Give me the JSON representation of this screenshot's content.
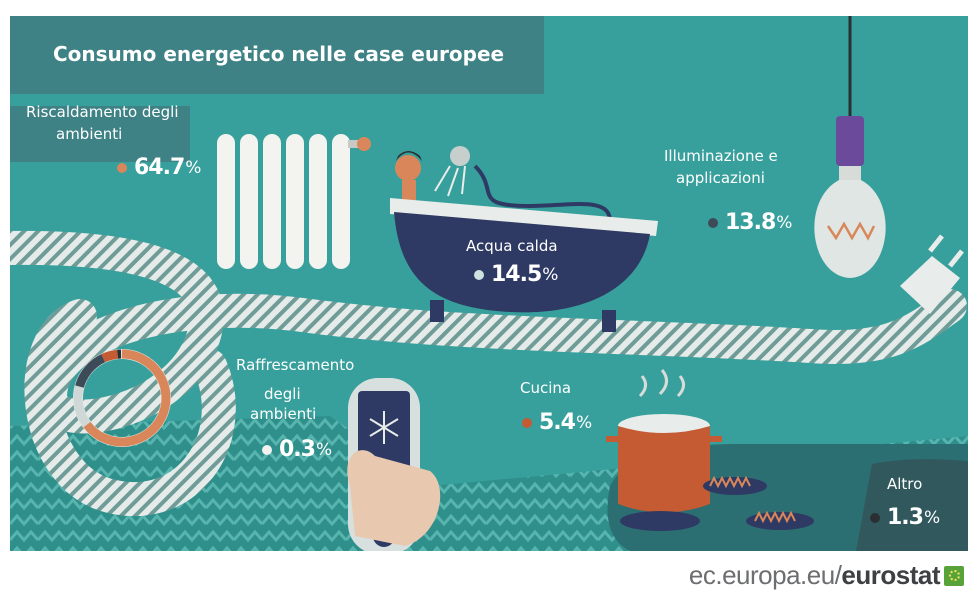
{
  "colors": {
    "background": "#38a09c",
    "dark_panel": "#3f8286",
    "accent_orange": "#d9875a",
    "accent_red": "#c45b32",
    "tub": "#2e3a63",
    "white": "#ffffff"
  },
  "chart_data": {
    "type": "pie",
    "title": "Consumo energetico nelle case europee",
    "unit": "%",
    "categories": [
      "Riscaldamento degli ambienti",
      "Acqua calda",
      "Illuminazione e applicazioni",
      "Cucina",
      "Altro",
      "Raffrescamento degli ambienti"
    ],
    "values": [
      64.7,
      14.5,
      13.8,
      5.4,
      1.3,
      0.3
    ],
    "slice_colors": [
      "#d9875a",
      "#cfd8d6",
      "#3d4b58",
      "#c45b32",
      "#2a2f33",
      "#e8ecea"
    ],
    "segments": [
      {
        "label_lines": [
          "Riscaldamento degli",
          "ambienti"
        ],
        "number": "64.7",
        "unit": "%",
        "dot": "#d9875a"
      },
      {
        "label_lines": [
          "Acqua calda"
        ],
        "number": "14.5",
        "unit": "%",
        "dot": "#cfe3e1"
      },
      {
        "label_lines": [
          "Illuminazione e",
          "applicazioni"
        ],
        "number": "13.8",
        "unit": "%",
        "dot": "#3d4b58"
      },
      {
        "label_lines": [
          "Cucina"
        ],
        "number": "5.4",
        "unit": "%",
        "dot": "#c45b32"
      },
      {
        "label_lines": [
          "Altro"
        ],
        "number": "1.3",
        "unit": "%",
        "dot": "#2a2f33"
      },
      {
        "label_lines": [
          "Raffrescamento",
          "degli",
          "ambienti"
        ],
        "number": "0.3",
        "unit": "%",
        "dot": "#f1f1f1"
      }
    ]
  },
  "source": {
    "prefix": "ec.europa.eu/",
    "brand": "eurostat"
  },
  "icons": [
    "radiator-icon",
    "bathtub-icon",
    "shower-icon",
    "light-bulb-icon",
    "power-plug-icon",
    "remote-control-icon",
    "snowflake-icon",
    "cooking-pot-icon",
    "gas-flame-icon",
    "cable-icon"
  ]
}
